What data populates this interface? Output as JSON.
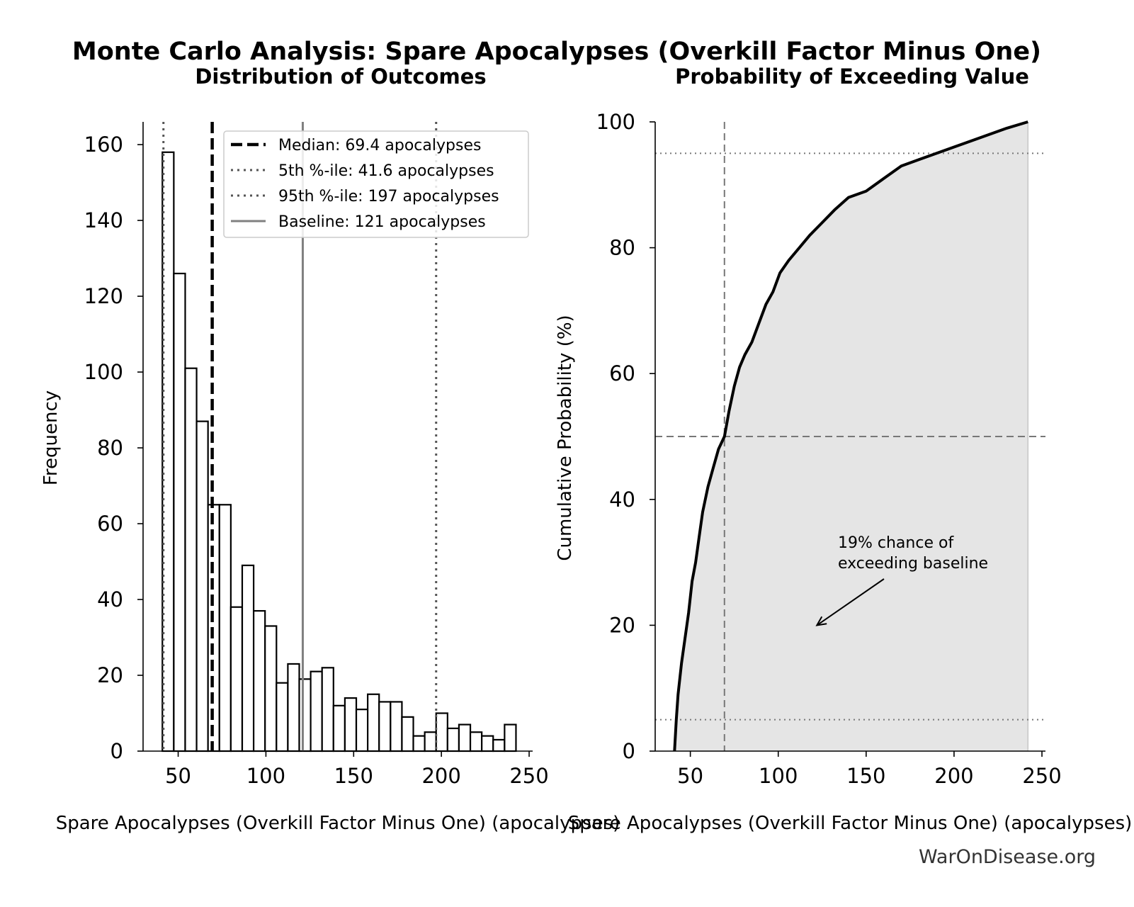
{
  "suptitle": "Monte Carlo Analysis: Spare Apocalypses (Overkill Factor Minus One)",
  "credit": "WarOnDisease.org",
  "colors": {
    "bar_fill": "#ffffff",
    "bar_edge": "#000000",
    "baseline": "#808080",
    "area_fill": "#e5e5e5",
    "ref_line": "#777777"
  },
  "chart_data": [
    {
      "type": "bar",
      "title": "Distribution of Outcomes",
      "xlabel": "Spare Apocalypses (Overkill Factor Minus One) (apocalypses)",
      "ylabel": "Frequency",
      "xlim": [
        30,
        252
      ],
      "ylim": [
        0,
        166
      ],
      "xticks": [
        "50",
        "100",
        "150",
        "200",
        "250"
      ],
      "yticks": [
        "0",
        "20",
        "40",
        "60",
        "80",
        "100",
        "120",
        "140",
        "160"
      ],
      "bin_width": 6.5,
      "bins": [
        {
          "x0": 41.0,
          "count": 158
        },
        {
          "x0": 47.5,
          "count": 126
        },
        {
          "x0": 54.0,
          "count": 101
        },
        {
          "x0": 60.5,
          "count": 87
        },
        {
          "x0": 67.0,
          "count": 65
        },
        {
          "x0": 73.5,
          "count": 65
        },
        {
          "x0": 80.0,
          "count": 38
        },
        {
          "x0": 86.5,
          "count": 49
        },
        {
          "x0": 93.0,
          "count": 37
        },
        {
          "x0": 99.5,
          "count": 33
        },
        {
          "x0": 106.0,
          "count": 18
        },
        {
          "x0": 112.5,
          "count": 23
        },
        {
          "x0": 119.0,
          "count": 19
        },
        {
          "x0": 125.5,
          "count": 21
        },
        {
          "x0": 132.0,
          "count": 22
        },
        {
          "x0": 138.5,
          "count": 12
        },
        {
          "x0": 145.0,
          "count": 14
        },
        {
          "x0": 151.5,
          "count": 11
        },
        {
          "x0": 158.0,
          "count": 15
        },
        {
          "x0": 164.5,
          "count": 13
        },
        {
          "x0": 171.0,
          "count": 13
        },
        {
          "x0": 177.5,
          "count": 9
        },
        {
          "x0": 184.0,
          "count": 4
        },
        {
          "x0": 190.5,
          "count": 5
        },
        {
          "x0": 197.0,
          "count": 10
        },
        {
          "x0": 203.5,
          "count": 6
        },
        {
          "x0": 210.0,
          "count": 7
        },
        {
          "x0": 216.5,
          "count": 5
        },
        {
          "x0": 223.0,
          "count": 4
        },
        {
          "x0": 229.5,
          "count": 3
        },
        {
          "x0": 236.0,
          "count": 7
        }
      ],
      "reference_lines": [
        {
          "label": "Median: 69.4 apocalypses",
          "value": 69.4,
          "style": "dashed"
        },
        {
          "label": "5th %-ile: 41.6 apocalypses",
          "value": 41.6,
          "style": "dotted"
        },
        {
          "label": "95th %-ile: 197 apocalypses",
          "value": 197,
          "style": "dotted"
        },
        {
          "label": "Baseline: 121 apocalypses",
          "value": 121,
          "style": "solid"
        }
      ],
      "legend_position": "top-right"
    },
    {
      "type": "area",
      "title": "Probability of Exceeding Value",
      "xlabel": "Spare Apocalypses (Overkill Factor Minus One) (apocalypses)",
      "ylabel": "Cumulative Probability (%)",
      "xlim": [
        30,
        252
      ],
      "ylim": [
        0,
        100
      ],
      "xticks": [
        "50",
        "100",
        "150",
        "200",
        "250"
      ],
      "yticks": [
        "0",
        "20",
        "40",
        "60",
        "80",
        "100"
      ],
      "x": [
        41,
        42,
        43,
        45,
        47,
        49,
        51,
        53,
        55,
        57,
        60,
        63,
        66,
        69.4,
        72,
        75,
        78,
        81,
        85,
        89,
        93,
        97,
        101,
        106,
        112,
        118,
        125,
        132,
        140,
        150,
        160,
        170,
        180,
        190,
        200,
        210,
        220,
        230,
        242
      ],
      "y": [
        0,
        5,
        9,
        14,
        18,
        22,
        27,
        30,
        34,
        38,
        42,
        45,
        48,
        50,
        54,
        58,
        61,
        63,
        65,
        68,
        71,
        73,
        76,
        78,
        80,
        82,
        84,
        86,
        88,
        89,
        91,
        93,
        94,
        95,
        96,
        97,
        98,
        99,
        100
      ],
      "horizontal_refs": [
        5,
        50,
        95
      ],
      "vertical_ref": 69.4,
      "annotation": {
        "text": [
          "19% chance of",
          "exceeding baseline"
        ],
        "arrow_to": [
          122,
          20
        ]
      }
    }
  ]
}
